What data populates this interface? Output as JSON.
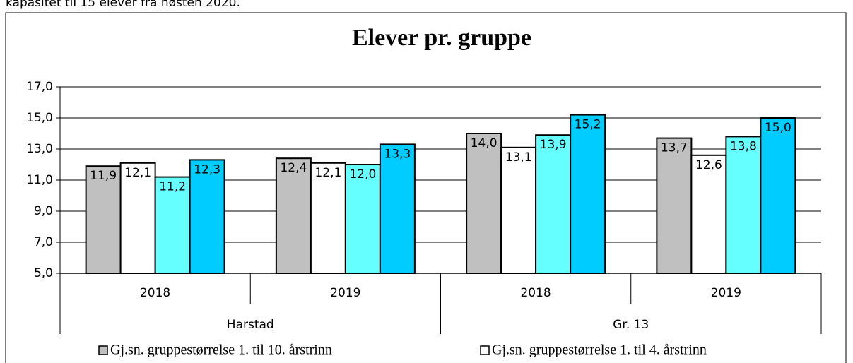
{
  "intro_text": "kapasitet til 15 elever fra høsten 2020.",
  "chart_data": {
    "type": "bar",
    "title": "Elever pr. gruppe",
    "categories": [
      "2018",
      "2019",
      "2018",
      "2019"
    ],
    "group_labels": [
      "Harstad",
      "Gr. 13"
    ],
    "series": [
      {
        "name": "Gj.sn. gruppestørrelse 1. til 10. årstrinn",
        "color": "#c0c0c0",
        "values": [
          11.9,
          12.4,
          14.0,
          13.7
        ],
        "value_labels": [
          "11,9",
          "12,4",
          "14,0",
          "13,7"
        ]
      },
      {
        "name": "Gj.sn. gruppestørrelse 1. til 4. årstrinn",
        "color": "#ffffff",
        "values": [
          12.1,
          12.1,
          13.1,
          12.6
        ],
        "value_labels": [
          "12,1",
          "12,1",
          "13,1",
          "12,6"
        ]
      },
      {
        "color": "#66ffff",
        "values": [
          11.2,
          12.0,
          13.9,
          13.8
        ],
        "value_labels": [
          "11,2",
          "12,0",
          "13,9",
          "13,8"
        ]
      },
      {
        "color": "#00ccff",
        "values": [
          12.3,
          13.3,
          15.2,
          15.0
        ],
        "value_labels": [
          "12,3",
          "13,3",
          "15,2",
          "15,0"
        ]
      }
    ],
    "ylim": [
      5,
      17
    ],
    "yticks": [
      {
        "value": 5,
        "label": "5,0"
      },
      {
        "value": 7,
        "label": "7,0"
      },
      {
        "value": 9,
        "label": "9,0"
      },
      {
        "value": 11,
        "label": "11,0"
      },
      {
        "value": 13,
        "label": "13,0"
      },
      {
        "value": 15,
        "label": "15,0"
      },
      {
        "value": 17,
        "label": "17,0"
      }
    ],
    "grid": true
  }
}
